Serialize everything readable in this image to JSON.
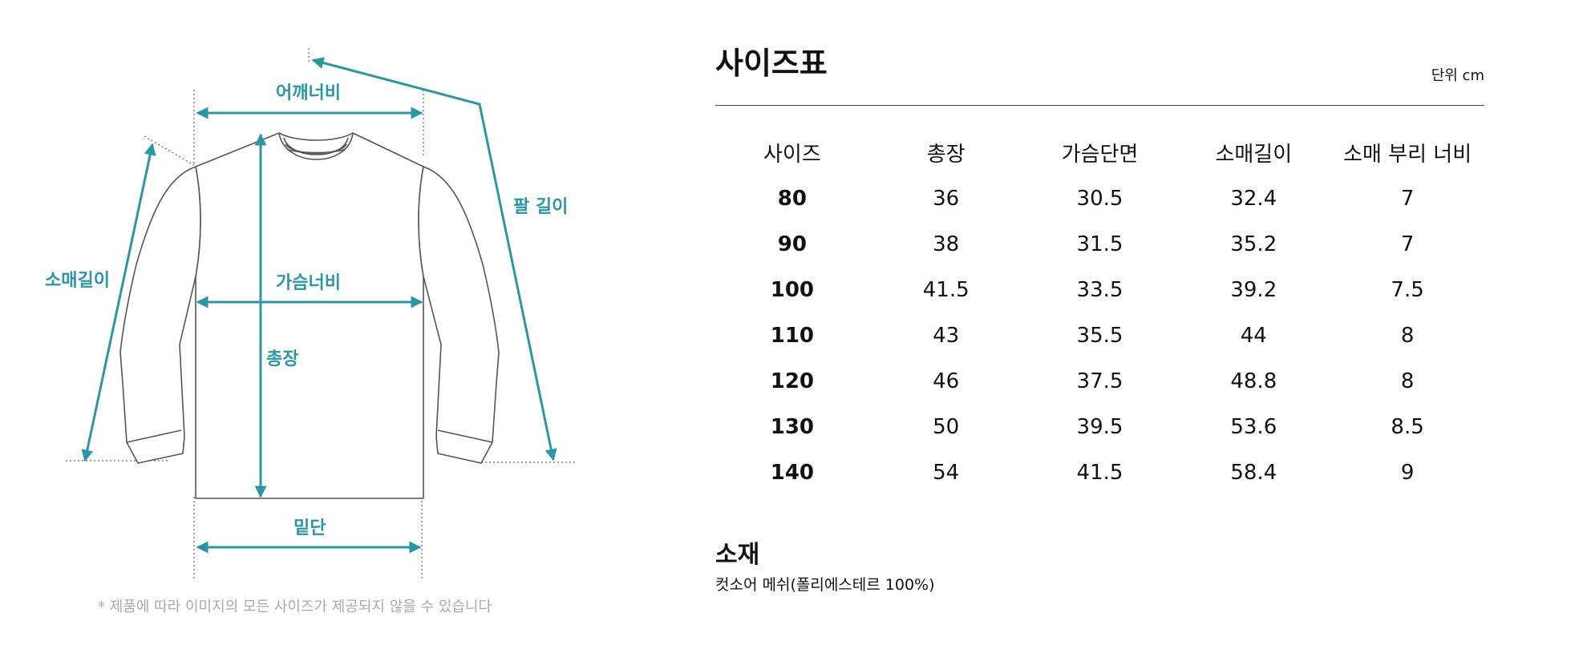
{
  "diagram": {
    "labels": {
      "shoulder_width": "어깨너비",
      "sleeve_length": "소매길이",
      "arm_length": "팔 길이",
      "chest_width": "가슴너비",
      "total_length": "총장",
      "hem": "밑단"
    },
    "disclaimer": "* 제품에 따라 이미지의 모든 사이즈가 제공되지 않을 수 있습니다",
    "accent_color": "#2a97a8"
  },
  "size_chart": {
    "title": "사이즈표",
    "unit": "단위 cm",
    "headers": [
      "사이즈",
      "총장",
      "가슴단면",
      "소매길이",
      "소매 부리 너비"
    ],
    "rows": [
      [
        "80",
        "36",
        "30.5",
        "32.4",
        "7"
      ],
      [
        "90",
        "38",
        "31.5",
        "35.2",
        "7"
      ],
      [
        "100",
        "41.5",
        "33.5",
        "39.2",
        "7.5"
      ],
      [
        "110",
        "43",
        "35.5",
        "44",
        "8"
      ],
      [
        "120",
        "46",
        "37.5",
        "48.8",
        "8"
      ],
      [
        "130",
        "50",
        "39.5",
        "53.6",
        "8.5"
      ],
      [
        "140",
        "54",
        "41.5",
        "58.4",
        "9"
      ]
    ]
  },
  "material": {
    "title": "소재",
    "text": "컷소어 메쉬(폴리에스테르 100%)"
  }
}
